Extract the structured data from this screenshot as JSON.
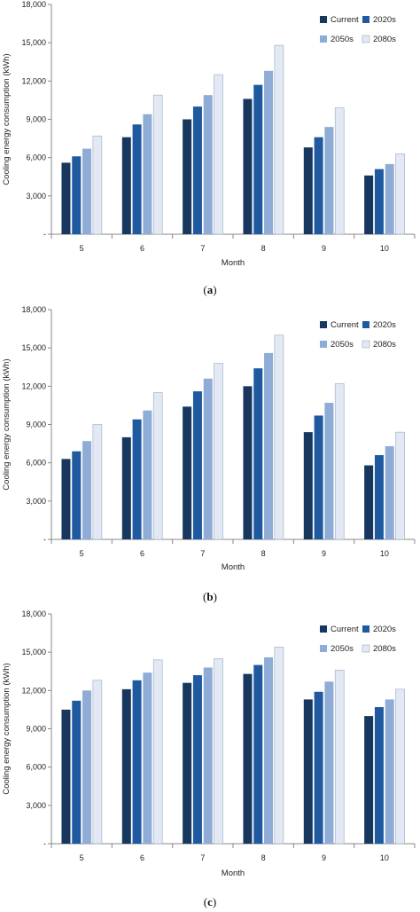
{
  "chart_data": [
    {
      "type": "bar",
      "panel": "(a)",
      "caption_open": "(",
      "caption_letter": "a",
      "caption_close": ")",
      "xlabel": "Month",
      "ylabel": "Cooling energy consumption (kWh)",
      "ylim": [
        0,
        18000
      ],
      "yticks": [
        "-",
        "3,000",
        "6,000",
        "9,000",
        "12,000",
        "15,000",
        "18,000"
      ],
      "categories": [
        "5",
        "6",
        "7",
        "8",
        "9",
        "10"
      ],
      "legend_position": "top-right",
      "series": [
        {
          "name": "Current",
          "color": "#17375e",
          "values": [
            5600,
            7600,
            9000,
            10600,
            6800,
            4600
          ]
        },
        {
          "name": "2020s",
          "color": "#1f5aa0",
          "values": [
            6100,
            8600,
            10000,
            11700,
            7600,
            5100
          ]
        },
        {
          "name": "2050s",
          "color": "#8eacd6",
          "values": [
            6700,
            9400,
            10900,
            12800,
            8400,
            5500
          ]
        },
        {
          "name": "2080s",
          "color": "#e2e9f4",
          "values": [
            7700,
            10900,
            12500,
            14800,
            9900,
            6300
          ]
        }
      ]
    },
    {
      "type": "bar",
      "panel": "(b)",
      "caption_open": "(",
      "caption_letter": "b",
      "caption_close": ")",
      "xlabel": "Month",
      "ylabel": "Cooling energy consumption (kWh)",
      "ylim": [
        0,
        18000
      ],
      "yticks": [
        "-",
        "3,000",
        "6,000",
        "9,000",
        "12,000",
        "15,000",
        "18,000"
      ],
      "categories": [
        "5",
        "6",
        "7",
        "8",
        "9",
        "10"
      ],
      "legend_position": "top-right",
      "series": [
        {
          "name": "Current",
          "color": "#17375e",
          "values": [
            6300,
            8000,
            10400,
            12000,
            8400,
            5800
          ]
        },
        {
          "name": "2020s",
          "color": "#1f5aa0",
          "values": [
            6900,
            9400,
            11600,
            13400,
            9700,
            6600
          ]
        },
        {
          "name": "2050s",
          "color": "#8eacd6",
          "values": [
            7700,
            10100,
            12600,
            14600,
            10700,
            7300
          ]
        },
        {
          "name": "2080s",
          "color": "#e2e9f4",
          "values": [
            9000,
            11500,
            13800,
            16000,
            12200,
            8400
          ]
        }
      ]
    },
    {
      "type": "bar",
      "panel": "(c)",
      "caption_open": "(",
      "caption_letter": "c",
      "caption_close": ")",
      "xlabel": "Month",
      "ylabel": "Cooling energy consumption (kWh)",
      "ylim": [
        0,
        18000
      ],
      "yticks": [
        "-",
        "3,000",
        "6,000",
        "9,000",
        "12,000",
        "15,000",
        "18,000"
      ],
      "categories": [
        "5",
        "6",
        "7",
        "8",
        "9",
        "10"
      ],
      "legend_position": "top-right",
      "series": [
        {
          "name": "Current",
          "color": "#17375e",
          "values": [
            10500,
            12100,
            12600,
            13300,
            11300,
            10000
          ]
        },
        {
          "name": "2020s",
          "color": "#1f5aa0",
          "values": [
            11200,
            12800,
            13200,
            14000,
            11900,
            10700
          ]
        },
        {
          "name": "2050s",
          "color": "#8eacd6",
          "values": [
            12000,
            13400,
            13800,
            14600,
            12700,
            11300
          ]
        },
        {
          "name": "2080s",
          "color": "#e2e9f4",
          "values": [
            12800,
            14400,
            14500,
            15400,
            13600,
            12100
          ]
        }
      ]
    }
  ]
}
